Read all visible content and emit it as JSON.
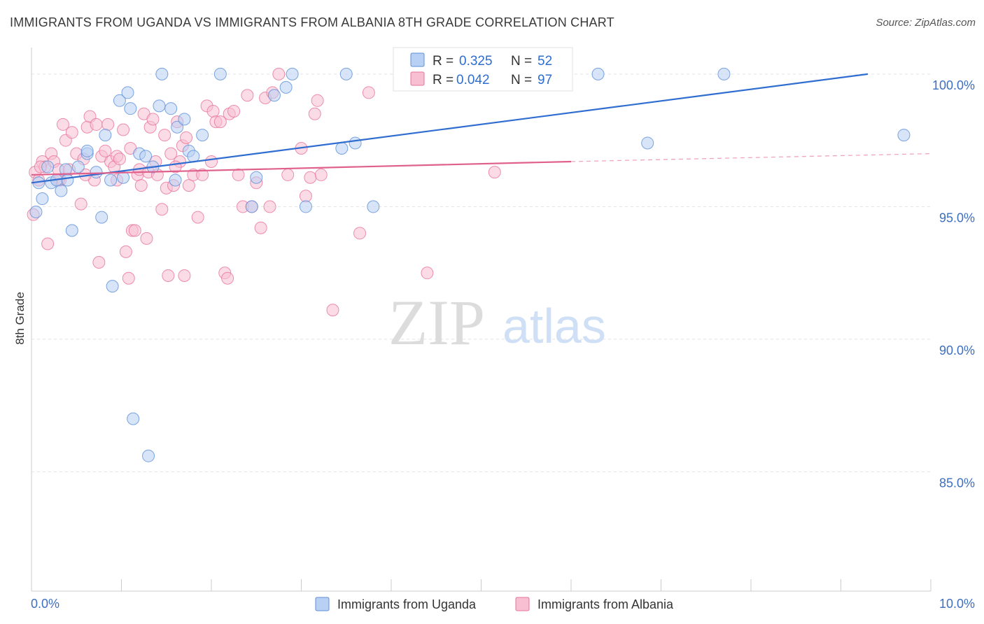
{
  "title": "IMMIGRANTS FROM UGANDA VS IMMIGRANTS FROM ALBANIA 8TH GRADE CORRELATION CHART",
  "source": "Source: ZipAtlas.com",
  "watermark": {
    "zip": "ZIP",
    "atlas": "atlas"
  },
  "colors": {
    "uganda": "#5b8fd9",
    "albania": "#e8739a",
    "uganda_fill": "#b8d0f3",
    "albania_fill": "#f7bfd1"
  },
  "legend": {
    "r_label": "R =",
    "n_label": "N =",
    "uganda": {
      "r": "0.325",
      "n": "52"
    },
    "albania": {
      "r": "0.042",
      "n": "97"
    }
  },
  "bottom_legend": [
    "Immigrants from Uganda",
    "Immigrants from Albania"
  ],
  "chart_data": {
    "type": "scatter",
    "ylabel": "8th Grade",
    "xlim": [
      0,
      10
    ],
    "ylim": [
      80.5,
      101
    ],
    "x_tick_labels": [
      "0.0%",
      "10.0%"
    ],
    "y_ticks": [
      {
        "value": 100,
        "label": "100.0%"
      },
      {
        "value": 95,
        "label": "95.0%"
      },
      {
        "value": 90,
        "label": "90.0%"
      },
      {
        "value": 85,
        "label": "85.0%"
      }
    ],
    "grid": true,
    "series": [
      {
        "name": "Immigrants from Uganda",
        "trend": [
          [
            0.0,
            95.9
          ],
          [
            9.3,
            100.0
          ]
        ],
        "points": [
          [
            0.05,
            94.8
          ],
          [
            0.08,
            95.9
          ],
          [
            0.12,
            95.3
          ],
          [
            0.18,
            96.5
          ],
          [
            0.22,
            95.9
          ],
          [
            0.28,
            96.0
          ],
          [
            0.33,
            95.6
          ],
          [
            0.38,
            96.4
          ],
          [
            0.45,
            94.1
          ],
          [
            0.52,
            96.5
          ],
          [
            0.62,
            97.0
          ],
          [
            0.72,
            96.3
          ],
          [
            0.78,
            94.6
          ],
          [
            0.82,
            97.7
          ],
          [
            0.88,
            96.0
          ],
          [
            0.9,
            92.0
          ],
          [
            0.98,
            99.0
          ],
          [
            1.02,
            96.1
          ],
          [
            1.07,
            99.3
          ],
          [
            1.1,
            98.7
          ],
          [
            1.13,
            87.0
          ],
          [
            1.2,
            97.0
          ],
          [
            1.27,
            96.9
          ],
          [
            1.3,
            85.6
          ],
          [
            1.35,
            96.5
          ],
          [
            1.42,
            98.8
          ],
          [
            1.45,
            100.0
          ],
          [
            1.55,
            98.7
          ],
          [
            1.62,
            98.0
          ],
          [
            1.7,
            98.3
          ],
          [
            1.75,
            97.1
          ],
          [
            1.8,
            96.9
          ],
          [
            1.9,
            97.7
          ],
          [
            2.1,
            100.0
          ],
          [
            2.45,
            95.0
          ],
          [
            2.5,
            96.1
          ],
          [
            2.7,
            99.2
          ],
          [
            2.83,
            99.5
          ],
          [
            2.9,
            100.0
          ],
          [
            3.05,
            95.0
          ],
          [
            3.5,
            100.0
          ],
          [
            3.45,
            97.2
          ],
          [
            3.6,
            97.4
          ],
          [
            3.8,
            95.0
          ],
          [
            5.5,
            100.0
          ],
          [
            6.3,
            100.0
          ],
          [
            6.85,
            97.4
          ],
          [
            7.7,
            100.0
          ],
          [
            9.7,
            97.7
          ],
          [
            0.62,
            97.1
          ],
          [
            0.4,
            96.0
          ],
          [
            1.6,
            96.0
          ]
        ]
      },
      {
        "name": "Immigrants from Albania",
        "trend": [
          [
            0.0,
            96.2
          ],
          [
            6.0,
            96.7
          ]
        ],
        "trend_extension": [
          [
            6.0,
            96.7
          ],
          [
            10.0,
            97.0
          ]
        ],
        "points": [
          [
            0.02,
            94.7
          ],
          [
            0.04,
            96.3
          ],
          [
            0.08,
            96.0
          ],
          [
            0.12,
            96.7
          ],
          [
            0.15,
            96.5
          ],
          [
            0.18,
            93.6
          ],
          [
            0.22,
            97.0
          ],
          [
            0.25,
            96.7
          ],
          [
            0.3,
            96.4
          ],
          [
            0.32,
            96.0
          ],
          [
            0.35,
            98.1
          ],
          [
            0.38,
            97.5
          ],
          [
            0.42,
            96.4
          ],
          [
            0.45,
            97.8
          ],
          [
            0.5,
            97.0
          ],
          [
            0.55,
            95.1
          ],
          [
            0.58,
            96.8
          ],
          [
            0.62,
            98.0
          ],
          [
            0.65,
            98.4
          ],
          [
            0.7,
            96.0
          ],
          [
            0.72,
            98.1
          ],
          [
            0.75,
            92.9
          ],
          [
            0.78,
            96.9
          ],
          [
            0.82,
            97.1
          ],
          [
            0.85,
            98.1
          ],
          [
            0.88,
            96.7
          ],
          [
            0.92,
            96.5
          ],
          [
            0.95,
            96.9
          ],
          [
            0.98,
            96.8
          ],
          [
            1.02,
            97.9
          ],
          [
            1.05,
            93.3
          ],
          [
            1.08,
            92.3
          ],
          [
            1.1,
            97.2
          ],
          [
            1.12,
            94.1
          ],
          [
            1.15,
            94.1
          ],
          [
            1.18,
            96.2
          ],
          [
            1.2,
            96.4
          ],
          [
            1.22,
            95.8
          ],
          [
            1.25,
            98.5
          ],
          [
            1.28,
            93.8
          ],
          [
            1.3,
            96.3
          ],
          [
            1.32,
            98.0
          ],
          [
            1.35,
            98.3
          ],
          [
            1.38,
            96.7
          ],
          [
            1.4,
            96.2
          ],
          [
            1.45,
            94.9
          ],
          [
            1.48,
            97.7
          ],
          [
            1.5,
            95.7
          ],
          [
            1.52,
            92.4
          ],
          [
            1.55,
            97.0
          ],
          [
            1.58,
            95.8
          ],
          [
            1.62,
            98.2
          ],
          [
            1.65,
            96.7
          ],
          [
            1.68,
            97.3
          ],
          [
            1.7,
            92.4
          ],
          [
            1.72,
            97.6
          ],
          [
            1.75,
            95.8
          ],
          [
            1.8,
            96.2
          ],
          [
            1.85,
            94.6
          ],
          [
            1.9,
            96.2
          ],
          [
            1.95,
            98.8
          ],
          [
            2.0,
            96.7
          ],
          [
            2.02,
            98.6
          ],
          [
            2.05,
            98.2
          ],
          [
            2.1,
            98.2
          ],
          [
            2.15,
            92.5
          ],
          [
            2.18,
            92.3
          ],
          [
            2.2,
            98.5
          ],
          [
            2.25,
            98.6
          ],
          [
            2.3,
            96.2
          ],
          [
            2.35,
            95.0
          ],
          [
            2.4,
            99.2
          ],
          [
            2.45,
            95.0
          ],
          [
            2.5,
            95.9
          ],
          [
            2.55,
            94.2
          ],
          [
            2.6,
            99.1
          ],
          [
            2.65,
            95.0
          ],
          [
            2.68,
            99.3
          ],
          [
            2.75,
            100.0
          ],
          [
            2.85,
            96.2
          ],
          [
            3.0,
            97.2
          ],
          [
            3.05,
            95.4
          ],
          [
            3.1,
            96.1
          ],
          [
            3.15,
            98.5
          ],
          [
            3.18,
            99.0
          ],
          [
            3.22,
            96.2
          ],
          [
            3.35,
            91.1
          ],
          [
            3.65,
            94.0
          ],
          [
            3.75,
            99.3
          ],
          [
            4.4,
            92.5
          ],
          [
            5.15,
            96.3
          ],
          [
            5.2,
            100.0
          ],
          [
            0.1,
            96.5
          ],
          [
            0.6,
            96.2
          ],
          [
            0.95,
            96.0
          ],
          [
            1.6,
            96.5
          ],
          [
            0.3,
            96.0
          ]
        ]
      }
    ]
  }
}
